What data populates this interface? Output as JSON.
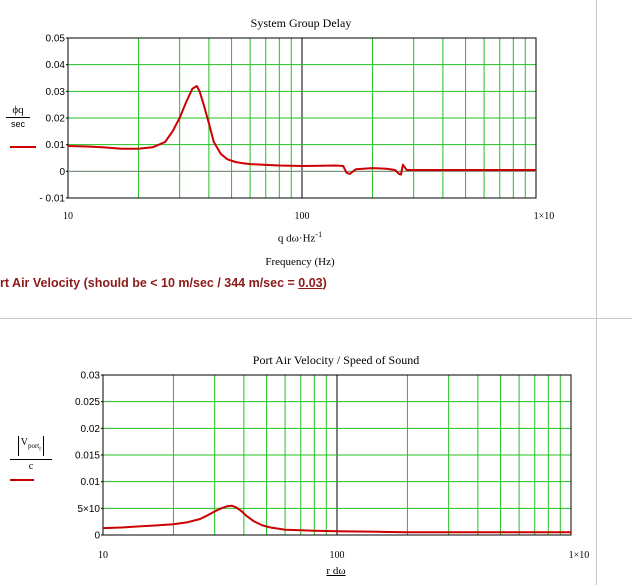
{
  "chart_data": [
    {
      "type": "line",
      "title": "System Group Delay",
      "xlabel_line1": "q dω·Hz",
      "xlabel_exp": "-1",
      "xlabel_line2": "Frequency (Hz)",
      "ylabel_top": "ϕq",
      "ylabel_bottom": "sec",
      "xscale": "log",
      "xlim": [
        10,
        1000
      ],
      "ylim": [
        -0.01,
        0.05
      ],
      "xticks": [
        "10",
        "100",
        "1×10"
      ],
      "xtick_exp": "3",
      "yticks": [
        "0.05",
        "0.04",
        "0.03",
        "0.02",
        "0.01",
        "0",
        "- 0.01"
      ],
      "grid": true,
      "series": [
        {
          "color": "#cc0000",
          "x": [
            10,
            12,
            14,
            17,
            20,
            23,
            26,
            28,
            30,
            32,
            34,
            35.5,
            36.5,
            38,
            40,
            42,
            45,
            48,
            52,
            56,
            60,
            70,
            80,
            100,
            120,
            140,
            150,
            155,
            160,
            170,
            200,
            230,
            250,
            260,
            265,
            270,
            275,
            280,
            300,
            350,
            400,
            500,
            600,
            700,
            800,
            900,
            1000
          ],
          "y": [
            0.0095,
            0.0093,
            0.009,
            0.0085,
            0.0085,
            0.009,
            0.011,
            0.015,
            0.02,
            0.026,
            0.031,
            0.032,
            0.03,
            0.025,
            0.018,
            0.011,
            0.0065,
            0.0045,
            0.0035,
            0.003,
            0.0027,
            0.0024,
            0.0022,
            0.002,
            0.0021,
            0.0022,
            0.002,
            -0.0005,
            -0.001,
            0.0008,
            0.0012,
            0.001,
            0.0005,
            -0.001,
            -0.0012,
            0.0025,
            0.0015,
            0.0005,
            0.0005,
            0.0005,
            0.0005,
            0.0005,
            0.0005,
            0.0005,
            0.0005,
            0.0005,
            0.0005
          ]
        }
      ]
    },
    {
      "type": "line",
      "title": "Port Air Velocity / Speed of Sound",
      "xlabel": "r dω",
      "ylabel_num": "V",
      "ylabel_num_sub": "port",
      "ylabel_num_subsub": "r",
      "ylabel_den": "c",
      "xscale": "log",
      "xlim": [
        10,
        1000
      ],
      "ylim": [
        0,
        0.03
      ],
      "xticks": [
        "10",
        "100",
        "1×10"
      ],
      "xtick_exp": "3",
      "yticks": [
        "0.03",
        "0.025",
        "0.02",
        "0.015",
        "0.01",
        "5×10",
        "0"
      ],
      "ytick_exp": "-3",
      "grid": true,
      "series": [
        {
          "color": "#cc0000",
          "x": [
            10,
            12,
            14,
            17,
            20,
            23,
            26,
            28,
            30,
            32,
            34,
            35.5,
            37,
            39,
            41,
            44,
            48,
            52,
            56,
            60,
            70,
            80,
            100,
            150,
            200,
            300,
            500,
            700,
            1000
          ],
          "y": [
            0.0013,
            0.0014,
            0.0016,
            0.0018,
            0.002,
            0.0024,
            0.003,
            0.0037,
            0.0044,
            0.005,
            0.0054,
            0.0055,
            0.0052,
            0.0045,
            0.0036,
            0.0026,
            0.0018,
            0.0014,
            0.0012,
            0.001,
            0.0009,
            0.0008,
            0.0007,
            0.0006,
            0.0005,
            0.0005,
            0.0005,
            0.0005,
            0.0005
          ]
        }
      ]
    }
  ],
  "banner": {
    "prefix": "rt Air Velocity (should be < 10 m/sec / 344 m/sec = ",
    "value": "0.03",
    "suffix": ")"
  }
}
